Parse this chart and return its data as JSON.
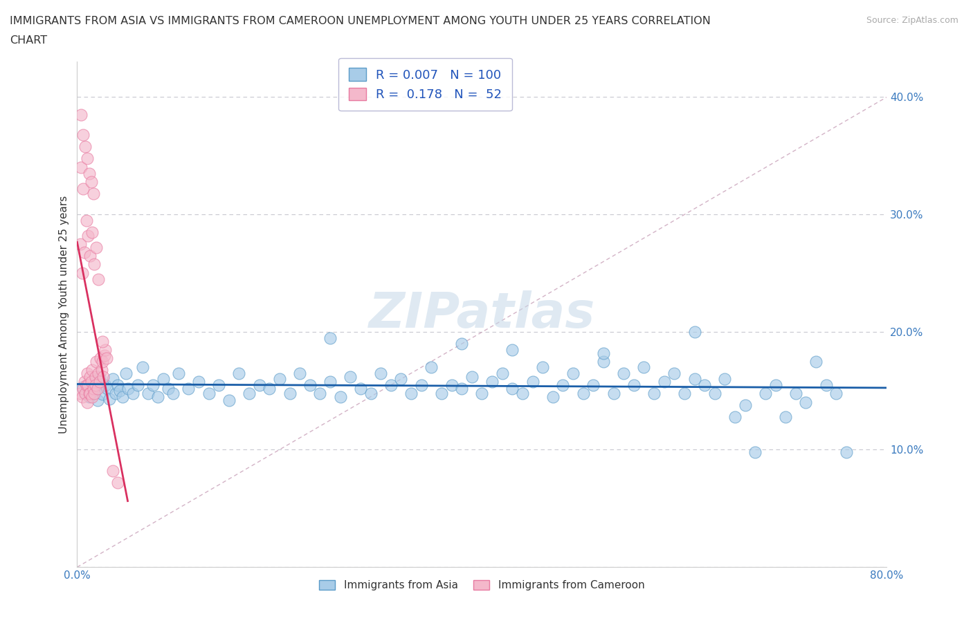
{
  "title_line1": "IMMIGRANTS FROM ASIA VS IMMIGRANTS FROM CAMEROON UNEMPLOYMENT AMONG YOUTH UNDER 25 YEARS CORRELATION",
  "title_line2": "CHART",
  "source": "Source: ZipAtlas.com",
  "ylabel": "Unemployment Among Youth under 25 years",
  "xlim": [
    0.0,
    0.8
  ],
  "ylim": [
    0.0,
    0.43
  ],
  "xticks": [
    0.0,
    0.1,
    0.2,
    0.3,
    0.4,
    0.5,
    0.6,
    0.7,
    0.8
  ],
  "yticks": [
    0.0,
    0.1,
    0.2,
    0.3,
    0.4
  ],
  "legend_R_asia": "0.007",
  "legend_N_asia": "100",
  "legend_R_cam": "0.178",
  "legend_N_cam": "52",
  "blue_color": "#a8cce8",
  "pink_color": "#f4b8cb",
  "blue_edge": "#5b9bc8",
  "pink_edge": "#e87aa0",
  "trend_blue": "#1a5ea8",
  "trend_pink": "#d93060",
  "diag_color": "#c8a0b8",
  "watermark_color": "#c5d8e8",
  "watermark": "ZIPatlas",
  "asia_x": [
    0.005,
    0.008,
    0.01,
    0.012,
    0.015,
    0.018,
    0.02,
    0.022,
    0.025,
    0.028,
    0.03,
    0.032,
    0.035,
    0.038,
    0.04,
    0.042,
    0.045,
    0.048,
    0.05,
    0.055,
    0.06,
    0.065,
    0.07,
    0.075,
    0.08,
    0.085,
    0.09,
    0.095,
    0.1,
    0.11,
    0.12,
    0.13,
    0.14,
    0.15,
    0.16,
    0.17,
    0.18,
    0.19,
    0.2,
    0.21,
    0.22,
    0.23,
    0.24,
    0.25,
    0.26,
    0.27,
    0.28,
    0.29,
    0.3,
    0.31,
    0.32,
    0.33,
    0.34,
    0.35,
    0.36,
    0.37,
    0.38,
    0.39,
    0.4,
    0.41,
    0.42,
    0.43,
    0.44,
    0.45,
    0.46,
    0.47,
    0.48,
    0.49,
    0.5,
    0.51,
    0.52,
    0.53,
    0.54,
    0.55,
    0.56,
    0.57,
    0.58,
    0.59,
    0.6,
    0.61,
    0.62,
    0.63,
    0.64,
    0.65,
    0.66,
    0.67,
    0.68,
    0.69,
    0.7,
    0.71,
    0.72,
    0.73,
    0.74,
    0.75,
    0.76,
    0.38,
    0.25,
    0.43,
    0.52,
    0.61
  ],
  "asia_y": [
    0.153,
    0.148,
    0.155,
    0.145,
    0.158,
    0.15,
    0.142,
    0.162,
    0.147,
    0.155,
    0.152,
    0.143,
    0.16,
    0.148,
    0.155,
    0.15,
    0.145,
    0.165,
    0.152,
    0.148,
    0.155,
    0.17,
    0.148,
    0.155,
    0.145,
    0.16,
    0.152,
    0.148,
    0.165,
    0.152,
    0.158,
    0.148,
    0.155,
    0.142,
    0.165,
    0.148,
    0.155,
    0.152,
    0.16,
    0.148,
    0.165,
    0.155,
    0.148,
    0.158,
    0.145,
    0.162,
    0.152,
    0.148,
    0.165,
    0.155,
    0.16,
    0.148,
    0.155,
    0.17,
    0.148,
    0.155,
    0.152,
    0.162,
    0.148,
    0.158,
    0.165,
    0.152,
    0.148,
    0.158,
    0.17,
    0.145,
    0.155,
    0.165,
    0.148,
    0.155,
    0.175,
    0.148,
    0.165,
    0.155,
    0.17,
    0.148,
    0.158,
    0.165,
    0.148,
    0.16,
    0.155,
    0.148,
    0.16,
    0.128,
    0.138,
    0.098,
    0.148,
    0.155,
    0.128,
    0.148,
    0.14,
    0.175,
    0.155,
    0.148,
    0.098,
    0.19,
    0.195,
    0.185,
    0.182,
    0.2
  ],
  "cam_x": [
    0.003,
    0.005,
    0.006,
    0.007,
    0.008,
    0.009,
    0.01,
    0.01,
    0.011,
    0.012,
    0.013,
    0.013,
    0.014,
    0.015,
    0.015,
    0.016,
    0.017,
    0.018,
    0.018,
    0.019,
    0.02,
    0.021,
    0.022,
    0.023,
    0.024,
    0.025,
    0.026,
    0.027,
    0.028,
    0.029,
    0.003,
    0.005,
    0.007,
    0.009,
    0.011,
    0.013,
    0.015,
    0.017,
    0.019,
    0.021,
    0.004,
    0.006,
    0.008,
    0.01,
    0.012,
    0.014,
    0.016,
    0.004,
    0.006,
    0.035,
    0.04,
    0.025
  ],
  "cam_y": [
    0.148,
    0.145,
    0.152,
    0.158,
    0.148,
    0.155,
    0.14,
    0.165,
    0.155,
    0.148,
    0.162,
    0.148,
    0.158,
    0.145,
    0.168,
    0.152,
    0.148,
    0.162,
    0.155,
    0.175,
    0.152,
    0.165,
    0.158,
    0.178,
    0.168,
    0.175,
    0.162,
    0.18,
    0.185,
    0.178,
    0.275,
    0.25,
    0.268,
    0.295,
    0.282,
    0.265,
    0.285,
    0.258,
    0.272,
    0.245,
    0.34,
    0.322,
    0.358,
    0.348,
    0.335,
    0.328,
    0.318,
    0.385,
    0.368,
    0.082,
    0.072,
    0.192
  ]
}
